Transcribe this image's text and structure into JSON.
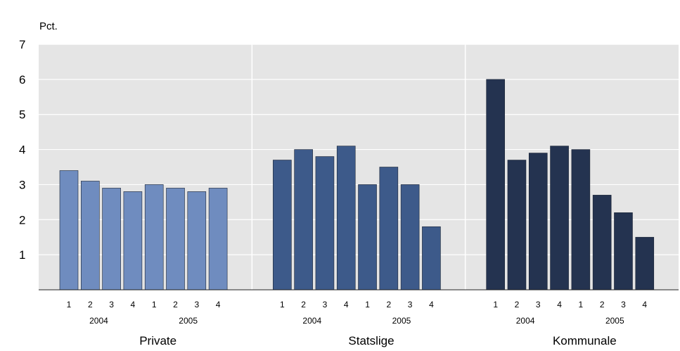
{
  "chart_data": {
    "type": "bar",
    "ylabel": "Pct.",
    "ylim": [
      0,
      7
    ],
    "yticks": [
      1,
      2,
      3,
      4,
      5,
      6,
      7
    ],
    "grid": true,
    "quarters": [
      "1",
      "2",
      "3",
      "4",
      "1",
      "2",
      "3",
      "4"
    ],
    "years": [
      "2004",
      "2005"
    ],
    "groups": [
      {
        "name": "Private",
        "color": "#6f8cbf",
        "values": [
          3.4,
          3.1,
          2.9,
          2.8,
          3.0,
          2.9,
          2.8,
          2.9
        ]
      },
      {
        "name": "Statslige",
        "color": "#3d5a8a",
        "values": [
          3.7,
          4.0,
          3.8,
          4.1,
          3.0,
          3.5,
          3.0,
          1.8
        ]
      },
      {
        "name": "Kommunale",
        "color": "#243350",
        "values": [
          6.0,
          3.7,
          3.9,
          4.1,
          4.0,
          2.7,
          2.2,
          1.5
        ]
      }
    ]
  },
  "colors": {
    "plot_bg": "#e5e5e5",
    "gridline": "#ffffff",
    "bar_stroke": "#1c2535"
  }
}
